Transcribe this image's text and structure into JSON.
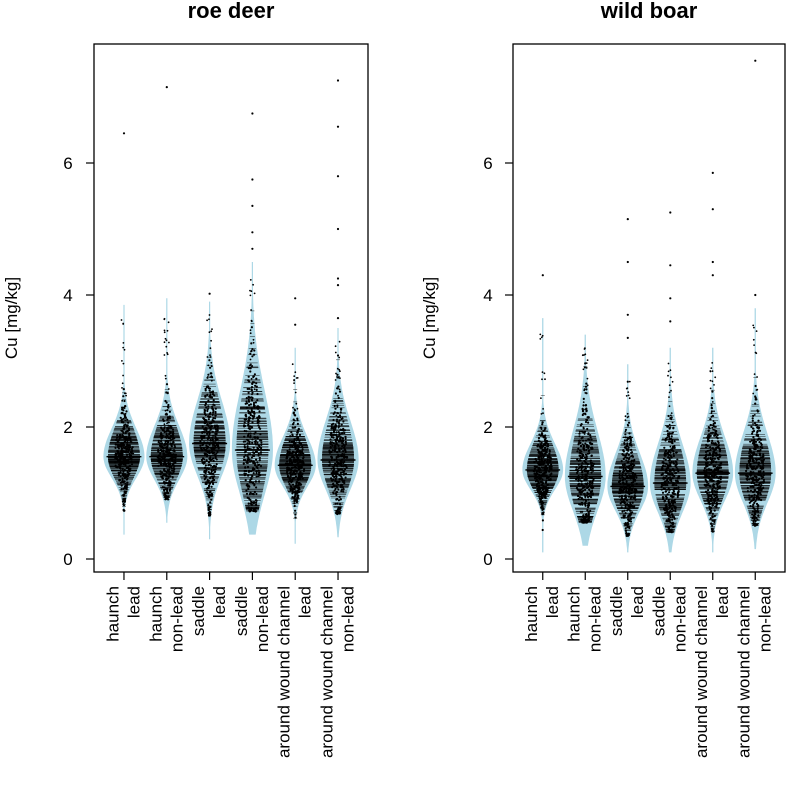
{
  "chart_data": [
    {
      "type": "beanplot",
      "title": "roe deer",
      "ylabel": "Cu [mg/kg]",
      "xlabel": "",
      "ylim": [
        0,
        7.6
      ],
      "yticks": [
        0,
        2,
        4,
        6
      ],
      "fill_color": "#add8e6",
      "point_color": "#000000",
      "groups": [
        {
          "tissue": "haunch",
          "ammo": "lead",
          "median": 1.55,
          "q1": 1.35,
          "q3": 1.78,
          "min": 0.72,
          "max": 3.65,
          "outliers": [
            6.45
          ]
        },
        {
          "tissue": "haunch",
          "ammo": "non-lead",
          "median": 1.55,
          "q1": 1.35,
          "q3": 1.82,
          "min": 0.9,
          "max": 3.75,
          "outliers": [
            7.15
          ]
        },
        {
          "tissue": "saddle",
          "ammo": "lead",
          "median": 1.75,
          "q1": 1.45,
          "q3": 2.1,
          "min": 0.65,
          "max": 3.7,
          "outliers": [
            4.02
          ]
        },
        {
          "tissue": "saddle",
          "ammo": "non-lead",
          "median": 1.65,
          "q1": 1.3,
          "q3": 2.2,
          "min": 0.72,
          "max": 4.3,
          "outliers": [
            4.7,
            4.95,
            5.35,
            5.75,
            6.75
          ]
        },
        {
          "tissue": "around wound channel",
          "ammo": "lead",
          "median": 1.42,
          "q1": 1.22,
          "q3": 1.65,
          "min": 0.58,
          "max": 3.0,
          "outliers": [
            3.55,
            3.95
          ]
        },
        {
          "tissue": "around wound channel",
          "ammo": "non-lead",
          "median": 1.5,
          "q1": 1.25,
          "q3": 1.85,
          "min": 0.68,
          "max": 3.3,
          "outliers": [
            3.65,
            4.15,
            4.25,
            5.0,
            5.8,
            6.55,
            7.25
          ]
        }
      ]
    },
    {
      "type": "beanplot",
      "title": "wild boar",
      "ylabel": "Cu [mg/kg]",
      "xlabel": "",
      "ylim": [
        0,
        7.6
      ],
      "yticks": [
        0,
        2,
        4,
        6
      ],
      "fill_color": "#add8e6",
      "point_color": "#000000",
      "groups": [
        {
          "tissue": "haunch",
          "ammo": "lead",
          "median": 1.35,
          "q1": 1.15,
          "q3": 1.55,
          "min": 0.42,
          "max": 3.45,
          "outliers": [
            4.3
          ]
        },
        {
          "tissue": "haunch",
          "ammo": "non-lead",
          "median": 1.25,
          "q1": 0.95,
          "q3": 1.65,
          "min": 0.55,
          "max": 3.2,
          "outliers": []
        },
        {
          "tissue": "saddle",
          "ammo": "lead",
          "median": 1.1,
          "q1": 0.9,
          "q3": 1.4,
          "min": 0.35,
          "max": 2.75,
          "outliers": [
            3.35,
            3.7,
            4.5,
            5.15
          ]
        },
        {
          "tissue": "saddle",
          "ammo": "non-lead",
          "median": 1.15,
          "q1": 0.9,
          "q3": 1.5,
          "min": 0.4,
          "max": 3.0,
          "outliers": [
            3.6,
            3.95,
            4.45,
            5.25
          ]
        },
        {
          "tissue": "around wound channel",
          "ammo": "lead",
          "median": 1.3,
          "q1": 1.05,
          "q3": 1.6,
          "min": 0.4,
          "max": 3.0,
          "outliers": [
            4.3,
            4.5,
            5.3,
            5.85
          ]
        },
        {
          "tissue": "around wound channel",
          "ammo": "non-lead",
          "median": 1.3,
          "q1": 1.05,
          "q3": 1.65,
          "min": 0.5,
          "max": 3.6,
          "outliers": [
            4.0,
            7.55
          ]
        }
      ]
    }
  ]
}
